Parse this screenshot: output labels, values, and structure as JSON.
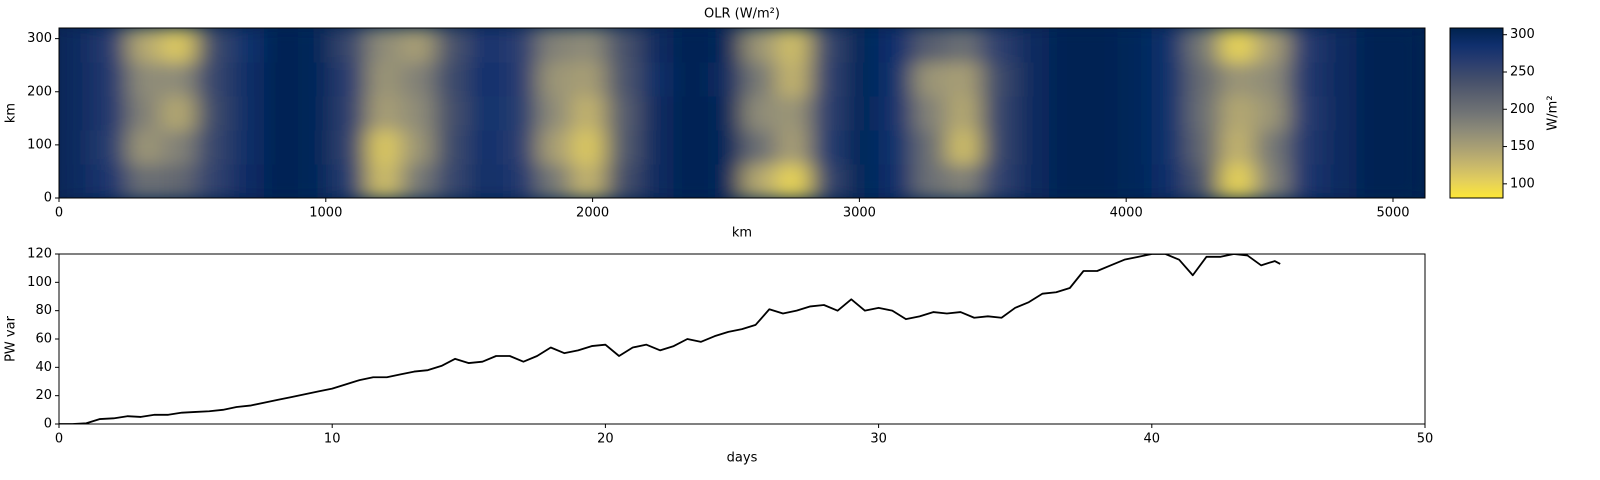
{
  "chart_data": [
    {
      "type": "heatmap",
      "title": "OLR (W/m²)",
      "xlabel": "km",
      "ylabel": "km",
      "colorbar_label": "W/m²",
      "x": [
        64,
        192,
        320,
        448,
        576,
        704,
        832,
        960,
        1088,
        1216,
        1344,
        1472,
        1600,
        1728,
        1856,
        1984,
        2112,
        2240,
        2368,
        2496,
        2624,
        2752,
        2880,
        3008,
        3136,
        3264,
        3392,
        3520,
        3648,
        3776,
        3904,
        4032,
        4160,
        4288,
        4416,
        4544,
        4672,
        4800,
        4928,
        5056
      ],
      "y": [
        32,
        96,
        160,
        224,
        288
      ],
      "z": [
        [
          295,
          275,
          200,
          210,
          255,
          292,
          305,
          300,
          265,
          120,
          190,
          250,
          290,
          270,
          190,
          130,
          240,
          296,
          305,
          300,
          140,
          100,
          250,
          300,
          288,
          200,
          180,
          255,
          296,
          305,
          305,
          300,
          288,
          230,
          100,
          180,
          275,
          296,
          305,
          305
        ],
        [
          295,
          265,
          160,
          180,
          250,
          290,
          305,
          300,
          255,
          110,
          160,
          245,
          287,
          262,
          150,
          110,
          225,
          295,
          305,
          300,
          200,
          150,
          265,
          300,
          285,
          200,
          120,
          250,
          295,
          305,
          305,
          300,
          285,
          210,
          130,
          190,
          270,
          295,
          305,
          305
        ],
        [
          295,
          270,
          180,
          140,
          245,
          290,
          305,
          300,
          260,
          150,
          170,
          240,
          285,
          265,
          170,
          130,
          220,
          295,
          305,
          300,
          170,
          160,
          260,
          300,
          284,
          180,
          140,
          250,
          295,
          305,
          305,
          300,
          285,
          200,
          140,
          160,
          268,
          295,
          305,
          305
        ],
        [
          295,
          272,
          170,
          170,
          250,
          290,
          305,
          300,
          262,
          160,
          180,
          245,
          286,
          266,
          160,
          150,
          230,
          290,
          305,
          295,
          190,
          130,
          255,
          300,
          285,
          160,
          150,
          245,
          295,
          305,
          305,
          300,
          285,
          205,
          160,
          170,
          270,
          295,
          305,
          305
        ],
        [
          295,
          268,
          140,
          110,
          245,
          285,
          305,
          300,
          250,
          170,
          150,
          235,
          280,
          262,
          180,
          170,
          235,
          295,
          305,
          300,
          160,
          120,
          250,
          300,
          286,
          220,
          200,
          260,
          296,
          305,
          305,
          300,
          285,
          190,
          100,
          150,
          268,
          295,
          305,
          305
        ]
      ],
      "xlim": [
        0,
        5120
      ],
      "ylim": [
        0,
        320
      ],
      "zlim": [
        81,
        309
      ],
      "xticks": [
        0,
        1000,
        2000,
        3000,
        4000,
        5000
      ],
      "yticks": [
        0,
        100,
        200,
        300
      ],
      "colorbar_ticks": [
        100,
        150,
        200,
        250,
        300
      ],
      "colorscale": [
        "#fde737",
        "#e3cf5c",
        "#c6b66c",
        "#a89f74",
        "#8c8a78",
        "#717475",
        "#5b616f",
        "#434e6b",
        "#2a3d6f",
        "#0f2f6d",
        "#00224e"
      ]
    },
    {
      "type": "line",
      "xlabel": "days",
      "ylabel": "PW var",
      "color": "#000000",
      "x": [
        0,
        0.5,
        1,
        1.5,
        2,
        2.5,
        3,
        3.5,
        4,
        4.5,
        5,
        5.5,
        6,
        6.5,
        7,
        7.5,
        8,
        8.5,
        9,
        9.5,
        10,
        10.5,
        11,
        11.5,
        12,
        12.5,
        13,
        13.5,
        14,
        14.5,
        15,
        15.5,
        16,
        16.5,
        17,
        17.5,
        18,
        18.5,
        19,
        19.5,
        20,
        20.5,
        21,
        21.5,
        22,
        22.5,
        23,
        23.5,
        24,
        24.5,
        25,
        25.5,
        26,
        26.5,
        27,
        27.5,
        28,
        28.5,
        29,
        29.5,
        30,
        30.5,
        31,
        31.5,
        32,
        32.5,
        33,
        33.5,
        34,
        34.5,
        35,
        35.5,
        36,
        36.5,
        37,
        37.5,
        38,
        38.5,
        39,
        39.5,
        40,
        40.5,
        41,
        41.5,
        42,
        42.5,
        43,
        43.5,
        44,
        44.5,
        44.7
      ],
      "values": [
        0,
        0,
        0.5,
        3.5,
        4,
        5.5,
        5,
        6.5,
        6.5,
        8,
        8.5,
        9,
        10,
        12,
        13,
        15,
        17,
        19,
        21,
        23,
        25,
        28,
        31,
        33,
        33,
        35,
        37,
        38,
        41,
        46,
        43,
        44,
        48,
        48,
        44,
        48,
        54,
        50,
        52,
        55,
        56,
        48,
        54,
        56,
        52,
        55,
        60,
        58,
        62,
        65,
        67,
        70,
        81,
        78,
        80,
        83,
        84,
        80,
        88,
        80,
        82,
        80,
        74,
        76,
        79,
        78,
        79,
        75,
        76,
        75,
        82,
        86,
        92,
        93,
        96,
        108,
        108,
        112,
        116,
        118,
        120,
        120,
        116,
        105,
        118,
        118,
        120,
        119,
        112,
        115,
        113
      ],
      "xlim": [
        0,
        50
      ],
      "ylim": [
        0,
        120
      ],
      "xticks": [
        0,
        10,
        20,
        30,
        40,
        50
      ],
      "yticks": [
        0,
        20,
        40,
        60,
        80,
        100,
        120
      ]
    }
  ]
}
